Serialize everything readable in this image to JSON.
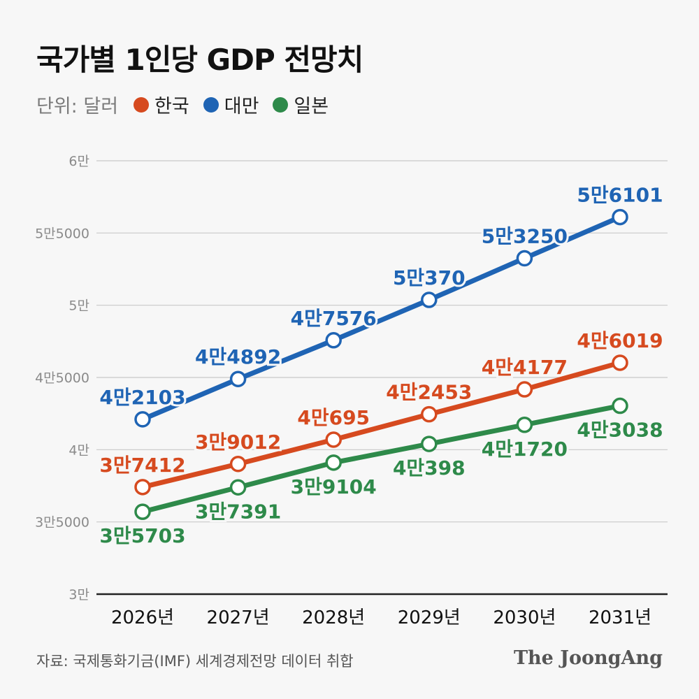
{
  "chart_data": {
    "type": "line",
    "title": "국가별 1인당 GDP 전망치",
    "unit_label": "단위: 달러",
    "categories": [
      "2026년",
      "2027년",
      "2028년",
      "2029년",
      "2030년",
      "2031년"
    ],
    "ylim": [
      30000,
      60000
    ],
    "yticks": [
      {
        "value": 30000,
        "label": "3만"
      },
      {
        "value": 35000,
        "label": "3만5000"
      },
      {
        "value": 40000,
        "label": "4만"
      },
      {
        "value": 45000,
        "label": "4만5000"
      },
      {
        "value": 50000,
        "label": "5만"
      },
      {
        "value": 55000,
        "label": "5만5000"
      },
      {
        "value": 60000,
        "label": "6만"
      }
    ],
    "grid": true,
    "legend_position": "top-left",
    "series": [
      {
        "name": "대만",
        "color": "#1f64b4",
        "label_side": "above",
        "values": [
          42103,
          44892,
          47576,
          50370,
          53250,
          56101
        ],
        "labels": [
          "4만2103",
          "4만4892",
          "4만7576",
          "5만370",
          "5만3250",
          "5만6101"
        ]
      },
      {
        "name": "한국",
        "color": "#d64a1f",
        "label_side": "above",
        "values": [
          37412,
          39012,
          40695,
          42453,
          44177,
          46019
        ],
        "labels": [
          "3만7412",
          "3만9012",
          "4만695",
          "4만2453",
          "4만4177",
          "4만6019"
        ]
      },
      {
        "name": "일본",
        "color": "#2e8a4a",
        "label_side": "below",
        "values": [
          35703,
          37391,
          39104,
          40398,
          41720,
          43038
        ],
        "labels": [
          "3만5703",
          "3만7391",
          "3만9104",
          "4만398",
          "4만1720",
          "4만3038"
        ]
      }
    ]
  },
  "legend": [
    {
      "name": "한국",
      "color": "#d64a1f"
    },
    {
      "name": "대만",
      "color": "#1f64b4"
    },
    {
      "name": "일본",
      "color": "#2e8a4a"
    }
  ],
  "footer": {
    "source": "자료: 국제통화기금(IMF) 세계경제전망 데이터 취합",
    "brand": "The JoongAng"
  }
}
